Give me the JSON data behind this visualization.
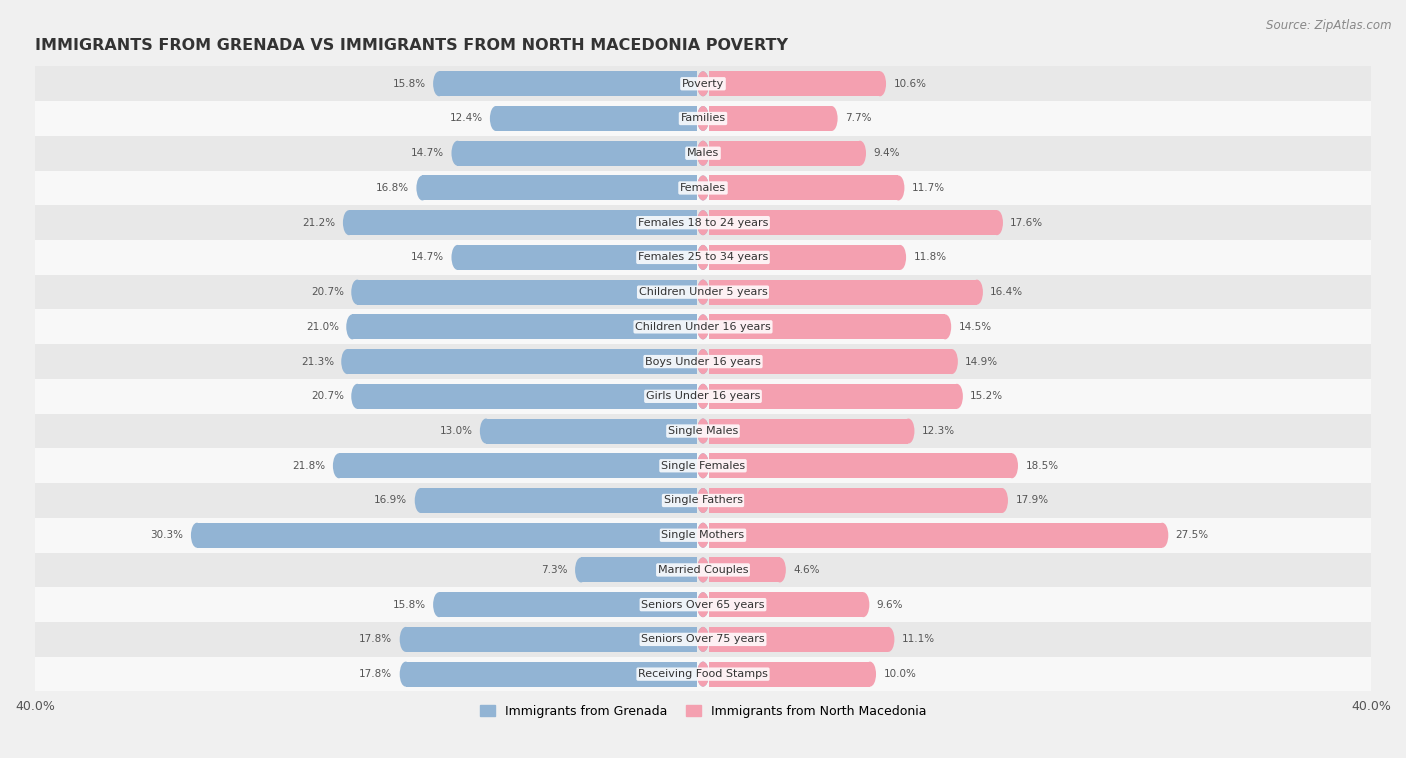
{
  "title": "IMMIGRANTS FROM GRENADA VS IMMIGRANTS FROM NORTH MACEDONIA POVERTY",
  "source": "Source: ZipAtlas.com",
  "categories": [
    "Poverty",
    "Families",
    "Males",
    "Females",
    "Females 18 to 24 years",
    "Females 25 to 34 years",
    "Children Under 5 years",
    "Children Under 16 years",
    "Boys Under 16 years",
    "Girls Under 16 years",
    "Single Males",
    "Single Females",
    "Single Fathers",
    "Single Mothers",
    "Married Couples",
    "Seniors Over 65 years",
    "Seniors Over 75 years",
    "Receiving Food Stamps"
  ],
  "grenada_values": [
    15.8,
    12.4,
    14.7,
    16.8,
    21.2,
    14.7,
    20.7,
    21.0,
    21.3,
    20.7,
    13.0,
    21.8,
    16.9,
    30.3,
    7.3,
    15.8,
    17.8,
    17.8
  ],
  "macedonia_values": [
    10.6,
    7.7,
    9.4,
    11.7,
    17.6,
    11.8,
    16.4,
    14.5,
    14.9,
    15.2,
    12.3,
    18.5,
    17.9,
    27.5,
    4.6,
    9.6,
    11.1,
    10.0
  ],
  "grenada_color": "#92b4d4",
  "macedonia_color": "#f4a0b0",
  "grenada_label": "Immigrants from Grenada",
  "macedonia_label": "Immigrants from North Macedonia",
  "xlim": 40.0,
  "background_color": "#f0f0f0",
  "row_even_color": "#e8e8e8",
  "row_odd_color": "#f8f8f8",
  "title_fontsize": 11.5,
  "source_fontsize": 8.5,
  "label_fontsize": 8,
  "value_fontsize": 7.5,
  "figsize": [
    14.06,
    7.58
  ]
}
